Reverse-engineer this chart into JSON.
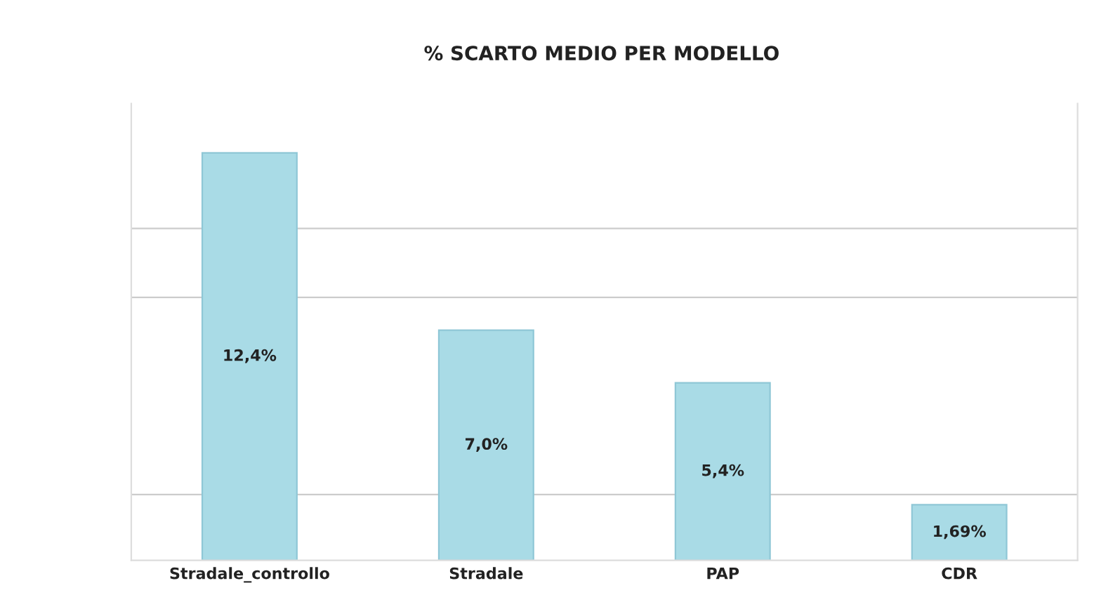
{
  "chart_data": {
    "type": "bar",
    "title": "% SCARTO MEDIO PER MODELLO",
    "categories": [
      "Stradale_controllo",
      "Stradale",
      "PAP",
      "CDR"
    ],
    "values": [
      12.4,
      7.0,
      5.4,
      1.69
    ],
    "value_labels": [
      "12,4%",
      "7,0%",
      "5,4%",
      "1,69%"
    ],
    "color": "#a9dbe6",
    "ylim": [
      0,
      13.9
    ],
    "yticks": [
      {
        "value": 2,
        "label": null
      },
      {
        "value": 8,
        "label": null
      },
      {
        "value": 10.1,
        "label": null
      }
    ],
    "grid": "y",
    "legend": false,
    "tick_labels": "x"
  }
}
